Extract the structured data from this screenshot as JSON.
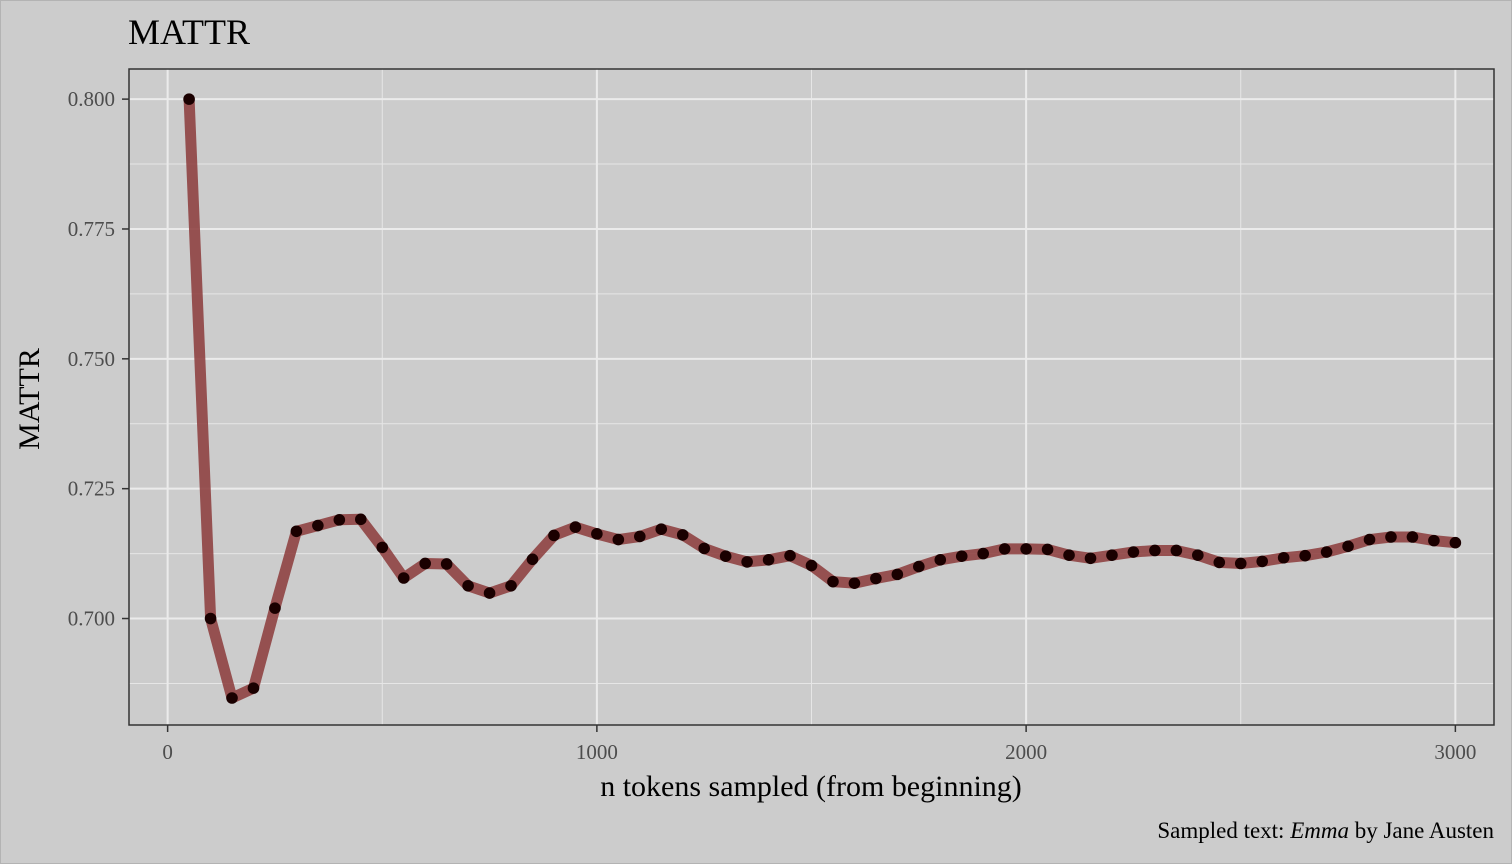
{
  "chart_data": {
    "type": "line",
    "title": "MATTR",
    "xlabel": "n tokens sampled (from beginning)",
    "ylabel": "MATTR",
    "caption": {
      "prefix": "Sampled text: ",
      "title_italic": "Emma",
      "suffix": " by Jane Austen"
    },
    "xlim": [
      -90,
      3090
    ],
    "ylim": [
      0.6795,
      0.8058
    ],
    "x_ticks": [
      0,
      1000,
      2000,
      3000
    ],
    "x_tick_labels": [
      "0",
      "1000",
      "2000",
      "3000"
    ],
    "y_ticks": [
      0.7,
      0.725,
      0.75,
      0.775,
      0.8
    ],
    "y_tick_labels": [
      "0.700",
      "0.725",
      "0.750",
      "0.775",
      "0.800"
    ],
    "grid": true,
    "series": [
      {
        "line_color": "#8b3a3a",
        "point_color": "#1a0000",
        "x": [
          50,
          100,
          150,
          200,
          250,
          300,
          350,
          400,
          450,
          500,
          550,
          600,
          650,
          700,
          750,
          800,
          850,
          900,
          950,
          1000,
          1050,
          1100,
          1150,
          1200,
          1250,
          1300,
          1350,
          1400,
          1450,
          1500,
          1550,
          1600,
          1650,
          1700,
          1750,
          1800,
          1850,
          1900,
          1950,
          2000,
          2050,
          2100,
          2150,
          2200,
          2250,
          2300,
          2350,
          2400,
          2450,
          2500,
          2550,
          2600,
          2650,
          2700,
          2750,
          2800,
          2850,
          2900,
          2950,
          3000
        ],
        "y": [
          0.8,
          0.7,
          0.6847,
          0.6866,
          0.702,
          0.7168,
          0.7179,
          0.719,
          0.7191,
          0.7137,
          0.7078,
          0.7106,
          0.7105,
          0.7063,
          0.7049,
          0.7063,
          0.7114,
          0.716,
          0.7176,
          0.7163,
          0.7152,
          0.7158,
          0.7172,
          0.7161,
          0.7135,
          0.712,
          0.7109,
          0.7113,
          0.7121,
          0.7102,
          0.7071,
          0.7068,
          0.7077,
          0.7085,
          0.71,
          0.7113,
          0.712,
          0.7125,
          0.7134,
          0.7134,
          0.7133,
          0.7122,
          0.7116,
          0.7122,
          0.7128,
          0.7131,
          0.7131,
          0.7122,
          0.7108,
          0.7106,
          0.711,
          0.7117,
          0.7121,
          0.7128,
          0.7139,
          0.7152,
          0.7157,
          0.7157,
          0.715,
          0.7146
        ]
      }
    ]
  }
}
